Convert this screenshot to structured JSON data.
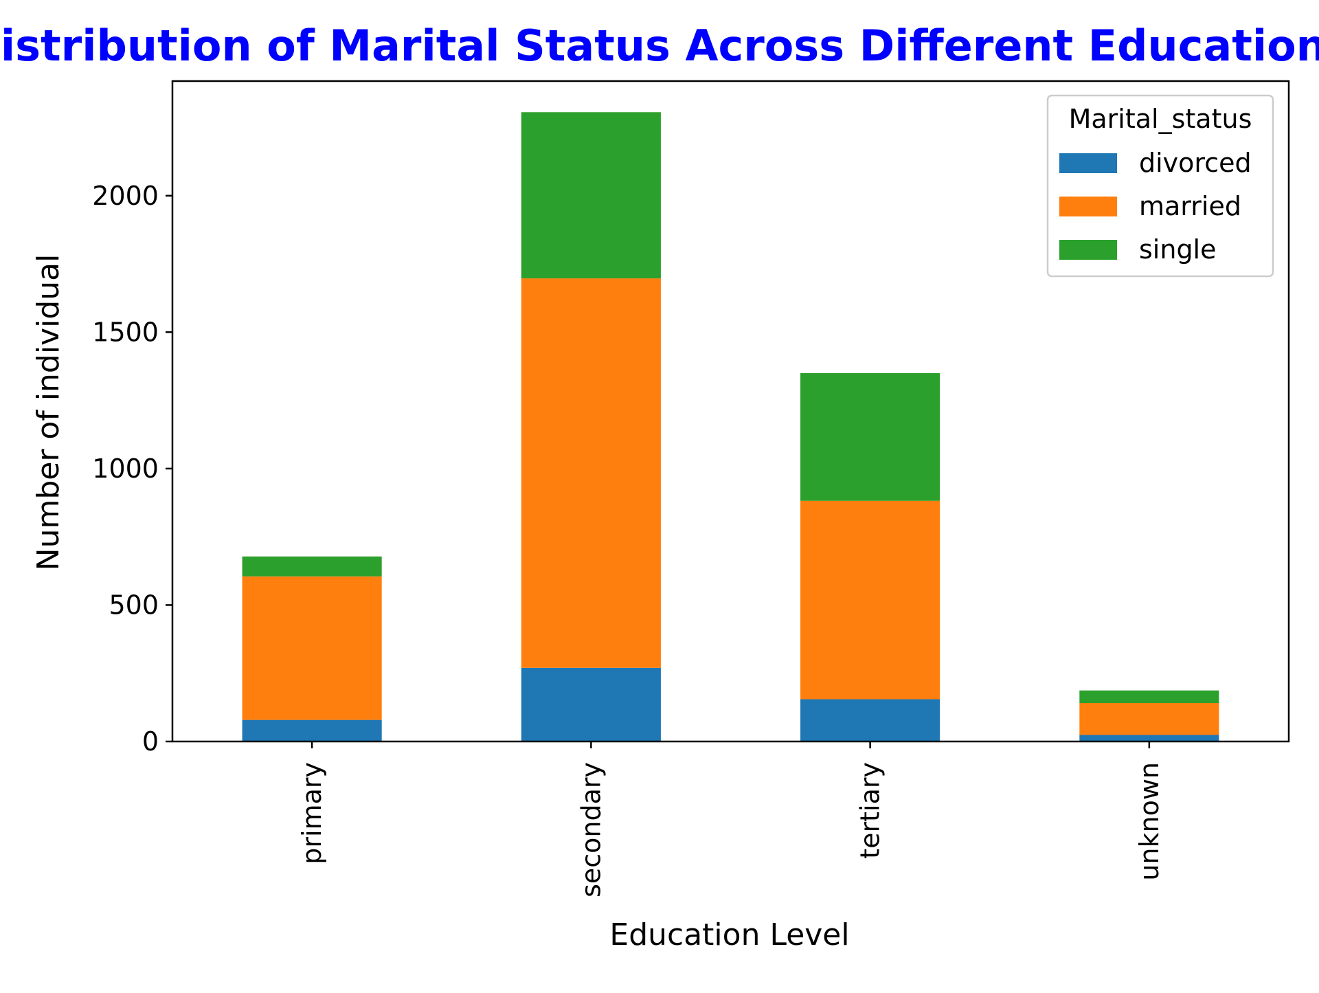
{
  "chart_data": {
    "type": "bar",
    "stacked": true,
    "title": "Distribution of Marital Status Across Different Education Levels",
    "xlabel": "Education Level",
    "ylabel": "Number of individual",
    "categories": [
      "primary",
      "secondary",
      "tertiary",
      "unknown"
    ],
    "series": [
      {
        "name": "divorced",
        "color": "#1f77b4",
        "values": [
          79,
          270,
          155,
          24
        ]
      },
      {
        "name": "married",
        "color": "#ff7f0e",
        "values": [
          526,
          1427,
          727,
          117
        ]
      },
      {
        "name": "single",
        "color": "#2ca02c",
        "values": [
          73,
          609,
          468,
          46
        ]
      }
    ],
    "ylim": [
      0,
      2420
    ],
    "yticks": [
      0,
      500,
      1000,
      1500,
      2000
    ],
    "legend": {
      "title": "Marital_status",
      "placement": "top-right"
    },
    "grid": false,
    "title_color": "#0000ff"
  }
}
